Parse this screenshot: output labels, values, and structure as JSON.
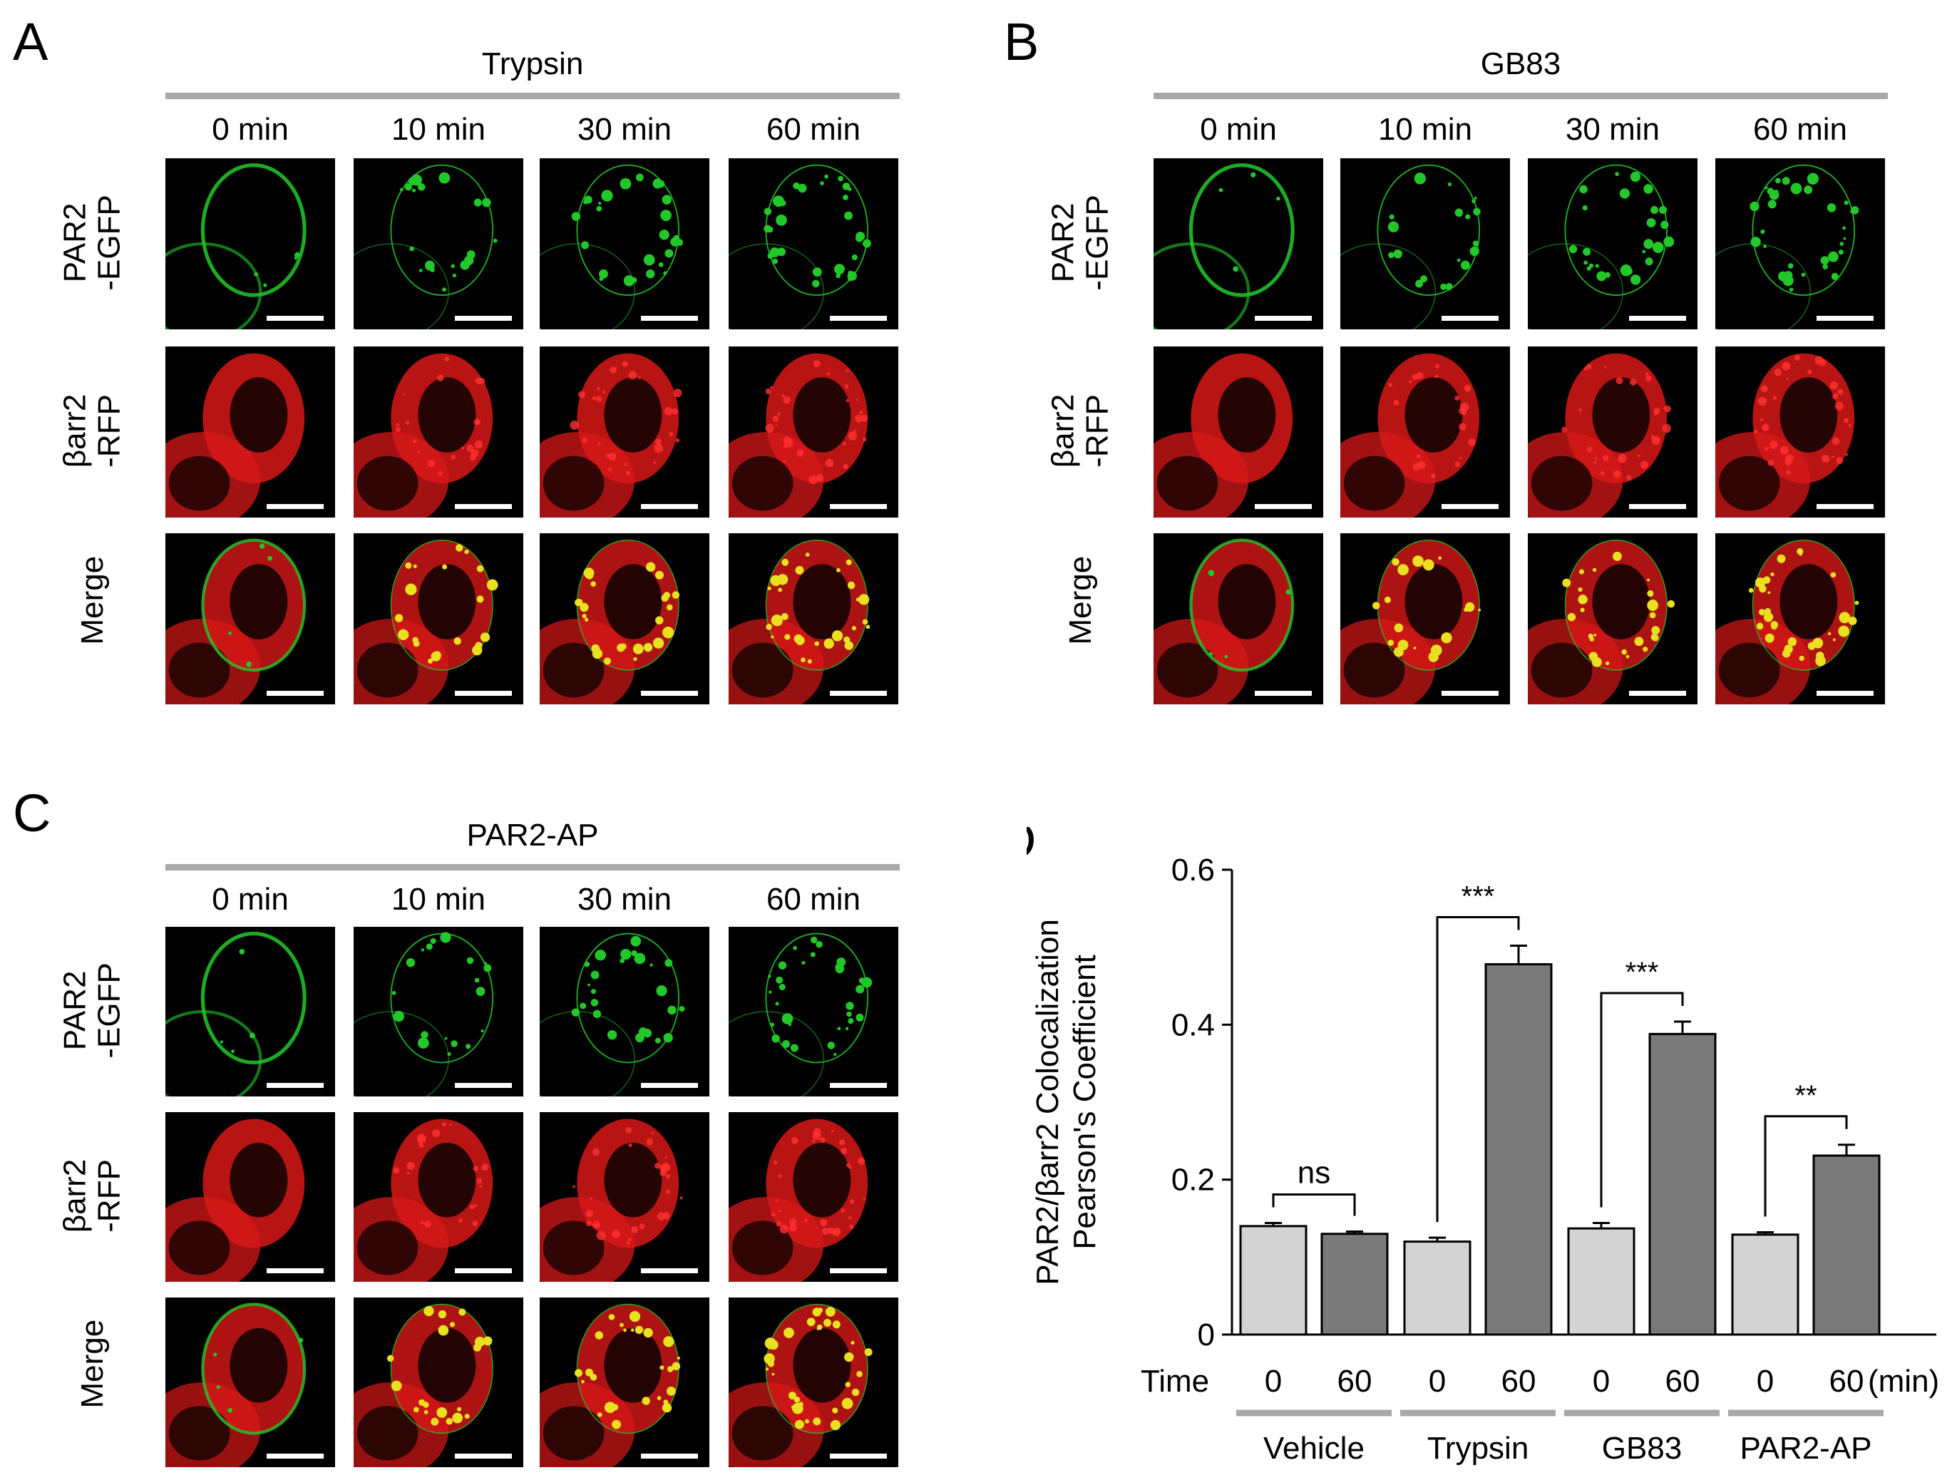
{
  "panels": [
    {
      "letter": "A",
      "condition": "Trypsin",
      "times": [
        "0 min",
        "10 min",
        "30 min",
        "60 min"
      ],
      "rows": [
        "PAR2\n-EGFP",
        "βarr2\n-RFP",
        "Merge"
      ]
    },
    {
      "letter": "B",
      "condition": "GB83",
      "times": [
        "0 min",
        "10 min",
        "30 min",
        "60 min"
      ],
      "rows": [
        "PAR2\n-EGFP",
        "βarr2\n-RFP",
        "Merge"
      ]
    },
    {
      "letter": "C",
      "condition": "PAR2-AP",
      "times": [
        "0 min",
        "10 min",
        "30 min",
        "60 min"
      ],
      "rows": [
        "PAR2\n-EGFP",
        "βarr2\n-RFP",
        "Merge"
      ]
    }
  ],
  "panel_d_letter": "D",
  "colors": {
    "egfp": "#22c82a",
    "rfp": "#d81818",
    "merge_spot": "#e8e020",
    "bar_light": "#d3d3d3",
    "bar_dark": "#7a7a7a",
    "group_line": "#a8a8a8"
  },
  "chart_data": {
    "type": "bar",
    "ylabel_lines": [
      "PAR2/βarr2 Colocalization",
      "Pearson's Coefficient"
    ],
    "ylim": [
      0,
      0.6
    ],
    "yticks": [
      "0",
      "0.2",
      "0.4",
      "0.6"
    ],
    "time_label": "Time",
    "time_unit": "(min)",
    "groups": [
      {
        "name": "Vehicle",
        "times": [
          "0",
          "60"
        ],
        "values": [
          0.14,
          0.13
        ],
        "errors": [
          0.004,
          0.003
        ],
        "sig": "ns"
      },
      {
        "name": "Trypsin",
        "times": [
          "0",
          "60"
        ],
        "values": [
          0.12,
          0.478
        ],
        "errors": [
          0.005,
          0.024
        ],
        "sig": "***"
      },
      {
        "name": "GB83",
        "times": [
          "0",
          "60"
        ],
        "values": [
          0.137,
          0.388
        ],
        "errors": [
          0.007,
          0.016
        ],
        "sig": "***"
      },
      {
        "name": "PAR2-AP",
        "times": [
          "0",
          "60"
        ],
        "values": [
          0.129,
          0.231
        ],
        "errors": [
          0.003,
          0.014
        ],
        "sig": "**"
      }
    ]
  }
}
